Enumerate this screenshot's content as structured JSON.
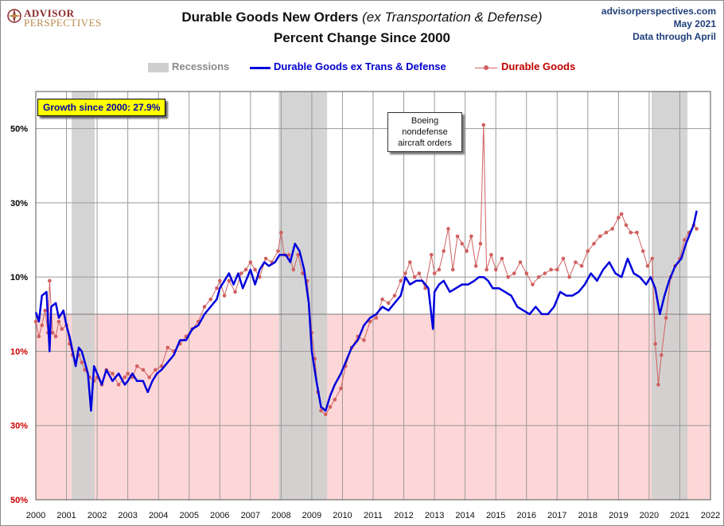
{
  "header": {
    "title_main": "Durable Goods New Orders",
    "title_italic": "(ex Transportation & Defense)",
    "subtitle": "Percent Change Since 2000",
    "logo_line1": "ADVISOR",
    "logo_line2": "PERSPECTIVES",
    "source_site": "advisorperspectives.com",
    "source_date": "May 2021",
    "source_data": "Data through April"
  },
  "legend": {
    "recessions": "Recessions",
    "series_blue": "Durable Goods ex Trans & Defense",
    "series_red": "Durable Goods"
  },
  "annotations": {
    "growth": "Growth since 2000:  27.9%",
    "boeing": [
      "Boeing",
      "nondefense",
      "aircraft orders"
    ]
  },
  "colors": {
    "blue_series": "#0000dd",
    "red_series": "#d06060",
    "recession": "#cfcfcf",
    "negative_zone": "#fdd7d7",
    "grid": "#9a9a9a",
    "positive_tick": "#000000",
    "negative_tick": "#cc0000"
  },
  "chart_data": {
    "type": "line",
    "x_unit": "year",
    "xlim": [
      2000,
      2022
    ],
    "ylim": [
      -50,
      60
    ],
    "x_ticks": [
      "2000",
      "2001",
      "2002",
      "2003",
      "2004",
      "2005",
      "2006",
      "2007",
      "2008",
      "2009",
      "2010",
      "2011",
      "2012",
      "2013",
      "2014",
      "2015",
      "2016",
      "2017",
      "2018",
      "2019",
      "2020",
      "2021",
      "2022"
    ],
    "y_ticks": [
      {
        "value": 50,
        "label": "50%",
        "negative": false
      },
      {
        "value": 30,
        "label": "30%",
        "negative": false
      },
      {
        "value": 10,
        "label": "10%",
        "negative": false
      },
      {
        "value": -10,
        "label": "10%",
        "negative": true
      },
      {
        "value": -30,
        "label": "30%",
        "negative": true
      },
      {
        "value": -50,
        "label": "50%",
        "negative": true
      }
    ],
    "negative_shading": true,
    "grid": true,
    "legend_position": "top-center",
    "recessions": [
      {
        "start": 2001.17,
        "end": 2001.92
      },
      {
        "start": 2007.92,
        "end": 2009.5
      },
      {
        "start": 2020.08,
        "end": 2021.25
      }
    ],
    "series": [
      {
        "name": "Durable Goods ex Trans & Defense",
        "points": [
          [
            2000.0,
            0.5
          ],
          [
            2000.1,
            -2
          ],
          [
            2000.2,
            5
          ],
          [
            2000.35,
            6
          ],
          [
            2000.45,
            -10
          ],
          [
            2000.5,
            2
          ],
          [
            2000.65,
            3
          ],
          [
            2000.75,
            -1
          ],
          [
            2000.9,
            1
          ],
          [
            2001.0,
            -3
          ],
          [
            2001.1,
            -6
          ],
          [
            2001.2,
            -10
          ],
          [
            2001.3,
            -14
          ],
          [
            2001.4,
            -9
          ],
          [
            2001.5,
            -10
          ],
          [
            2001.6,
            -13
          ],
          [
            2001.7,
            -16
          ],
          [
            2001.8,
            -26
          ],
          [
            2001.9,
            -14
          ],
          [
            2002.0,
            -16
          ],
          [
            2002.15,
            -19
          ],
          [
            2002.3,
            -15
          ],
          [
            2002.5,
            -18
          ],
          [
            2002.7,
            -16
          ],
          [
            2002.9,
            -19
          ],
          [
            2003.0,
            -18
          ],
          [
            2003.15,
            -16
          ],
          [
            2003.3,
            -18
          ],
          [
            2003.5,
            -18
          ],
          [
            2003.65,
            -21
          ],
          [
            2003.8,
            -18
          ],
          [
            2003.95,
            -16
          ],
          [
            2004.1,
            -15
          ],
          [
            2004.3,
            -13
          ],
          [
            2004.5,
            -11
          ],
          [
            2004.7,
            -7
          ],
          [
            2004.9,
            -7
          ],
          [
            2005.1,
            -4
          ],
          [
            2005.3,
            -3
          ],
          [
            2005.5,
            0
          ],
          [
            2005.7,
            2
          ],
          [
            2005.9,
            4
          ],
          [
            2006.0,
            7
          ],
          [
            2006.15,
            9
          ],
          [
            2006.3,
            11
          ],
          [
            2006.45,
            8
          ],
          [
            2006.6,
            11
          ],
          [
            2006.75,
            7
          ],
          [
            2006.9,
            10
          ],
          [
            2007.0,
            12
          ],
          [
            2007.15,
            8
          ],
          [
            2007.3,
            12
          ],
          [
            2007.45,
            14
          ],
          [
            2007.6,
            13
          ],
          [
            2007.8,
            14
          ],
          [
            2007.95,
            16
          ],
          [
            2008.15,
            16
          ],
          [
            2008.3,
            14
          ],
          [
            2008.45,
            19
          ],
          [
            2008.6,
            17
          ],
          [
            2008.75,
            12
          ],
          [
            2008.9,
            3
          ],
          [
            2009.0,
            -10
          ],
          [
            2009.15,
            -18
          ],
          [
            2009.3,
            -25
          ],
          [
            2009.45,
            -26
          ],
          [
            2009.6,
            -22
          ],
          [
            2009.75,
            -19
          ],
          [
            2009.95,
            -16
          ],
          [
            2010.15,
            -12
          ],
          [
            2010.3,
            -9
          ],
          [
            2010.5,
            -7
          ],
          [
            2010.7,
            -3
          ],
          [
            2010.9,
            -1
          ],
          [
            2011.1,
            0
          ],
          [
            2011.3,
            2
          ],
          [
            2011.5,
            1
          ],
          [
            2011.7,
            3
          ],
          [
            2011.9,
            5
          ],
          [
            2012.05,
            10
          ],
          [
            2012.2,
            8
          ],
          [
            2012.4,
            9
          ],
          [
            2012.6,
            9
          ],
          [
            2012.8,
            7
          ],
          [
            2012.95,
            -4
          ],
          [
            2013.0,
            6
          ],
          [
            2013.15,
            8
          ],
          [
            2013.3,
            9
          ],
          [
            2013.5,
            6
          ],
          [
            2013.7,
            7
          ],
          [
            2013.9,
            8
          ],
          [
            2014.1,
            8
          ],
          [
            2014.3,
            9
          ],
          [
            2014.45,
            10
          ],
          [
            2014.6,
            10
          ],
          [
            2014.75,
            9
          ],
          [
            2014.9,
            7
          ],
          [
            2015.1,
            7
          ],
          [
            2015.3,
            6
          ],
          [
            2015.5,
            5
          ],
          [
            2015.7,
            2
          ],
          [
            2015.9,
            1
          ],
          [
            2016.1,
            0
          ],
          [
            2016.3,
            2
          ],
          [
            2016.5,
            0
          ],
          [
            2016.7,
            0
          ],
          [
            2016.9,
            2
          ],
          [
            2017.1,
            6
          ],
          [
            2017.3,
            5
          ],
          [
            2017.5,
            5
          ],
          [
            2017.7,
            6
          ],
          [
            2017.9,
            8
          ],
          [
            2018.1,
            11
          ],
          [
            2018.3,
            9
          ],
          [
            2018.5,
            12
          ],
          [
            2018.7,
            14
          ],
          [
            2018.9,
            11
          ],
          [
            2019.1,
            10
          ],
          [
            2019.3,
            15
          ],
          [
            2019.5,
            11
          ],
          [
            2019.7,
            10
          ],
          [
            2019.9,
            8
          ],
          [
            2020.05,
            10
          ],
          [
            2020.2,
            7
          ],
          [
            2020.35,
            0
          ],
          [
            2020.5,
            5
          ],
          [
            2020.65,
            9
          ],
          [
            2020.85,
            13
          ],
          [
            2021.05,
            15
          ],
          [
            2021.2,
            19
          ],
          [
            2021.35,
            22
          ],
          [
            2021.45,
            24
          ],
          [
            2021.55,
            27.9
          ]
        ]
      },
      {
        "name": "Durable Goods",
        "points": [
          [
            2000.0,
            -2
          ],
          [
            2000.1,
            -6
          ],
          [
            2000.2,
            -3
          ],
          [
            2000.3,
            1
          ],
          [
            2000.4,
            -5
          ],
          [
            2000.45,
            9
          ],
          [
            2000.55,
            -5
          ],
          [
            2000.65,
            -6
          ],
          [
            2000.75,
            -2
          ],
          [
            2000.85,
            -4
          ],
          [
            2001.0,
            -3
          ],
          [
            2001.1,
            -8
          ],
          [
            2001.2,
            -11
          ],
          [
            2001.3,
            -13
          ],
          [
            2001.4,
            -11
          ],
          [
            2001.5,
            -13
          ],
          [
            2001.6,
            -15
          ],
          [
            2001.75,
            -17
          ],
          [
            2001.9,
            -18
          ],
          [
            2002.0,
            -17
          ],
          [
            2002.15,
            -19
          ],
          [
            2002.3,
            -15
          ],
          [
            2002.5,
            -16
          ],
          [
            2002.7,
            -19
          ],
          [
            2002.9,
            -17
          ],
          [
            2003.0,
            -16
          ],
          [
            2003.15,
            -17
          ],
          [
            2003.3,
            -14
          ],
          [
            2003.5,
            -15
          ],
          [
            2003.7,
            -17
          ],
          [
            2003.9,
            -15
          ],
          [
            2004.1,
            -14
          ],
          [
            2004.3,
            -9
          ],
          [
            2004.5,
            -10
          ],
          [
            2004.7,
            -8
          ],
          [
            2004.9,
            -6
          ],
          [
            2005.1,
            -4
          ],
          [
            2005.3,
            -2
          ],
          [
            2005.5,
            2
          ],
          [
            2005.7,
            4
          ],
          [
            2005.9,
            7
          ],
          [
            2006.0,
            9
          ],
          [
            2006.15,
            5
          ],
          [
            2006.3,
            9
          ],
          [
            2006.5,
            6
          ],
          [
            2006.7,
            11
          ],
          [
            2006.85,
            12
          ],
          [
            2007.0,
            14
          ],
          [
            2007.15,
            12
          ],
          [
            2007.3,
            10
          ],
          [
            2007.5,
            15
          ],
          [
            2007.7,
            14
          ],
          [
            2007.9,
            17
          ],
          [
            2008.0,
            22
          ],
          [
            2008.1,
            16
          ],
          [
            2008.25,
            16
          ],
          [
            2008.4,
            12
          ],
          [
            2008.55,
            16
          ],
          [
            2008.7,
            11
          ],
          [
            2008.85,
            9
          ],
          [
            2009.0,
            -5
          ],
          [
            2009.1,
            -12
          ],
          [
            2009.2,
            -21
          ],
          [
            2009.3,
            -26
          ],
          [
            2009.45,
            -27
          ],
          [
            2009.6,
            -25
          ],
          [
            2009.75,
            -23
          ],
          [
            2009.95,
            -20
          ],
          [
            2010.1,
            -14
          ],
          [
            2010.3,
            -9
          ],
          [
            2010.5,
            -6
          ],
          [
            2010.7,
            -7
          ],
          [
            2010.9,
            -2
          ],
          [
            2011.1,
            -1
          ],
          [
            2011.3,
            4
          ],
          [
            2011.5,
            3
          ],
          [
            2011.7,
            5
          ],
          [
            2011.9,
            9
          ],
          [
            2012.05,
            11
          ],
          [
            2012.2,
            14
          ],
          [
            2012.35,
            10
          ],
          [
            2012.5,
            11
          ],
          [
            2012.7,
            7
          ],
          [
            2012.9,
            16
          ],
          [
            2013.0,
            11
          ],
          [
            2013.15,
            12
          ],
          [
            2013.3,
            17
          ],
          [
            2013.45,
            23
          ],
          [
            2013.6,
            12
          ],
          [
            2013.75,
            21
          ],
          [
            2013.9,
            19
          ],
          [
            2014.05,
            17
          ],
          [
            2014.2,
            21
          ],
          [
            2014.35,
            13
          ],
          [
            2014.5,
            19
          ],
          [
            2014.6,
            51
          ],
          [
            2014.7,
            12
          ],
          [
            2014.85,
            16
          ],
          [
            2015.0,
            12
          ],
          [
            2015.2,
            15
          ],
          [
            2015.4,
            10
          ],
          [
            2015.6,
            11
          ],
          [
            2015.8,
            14
          ],
          [
            2016.0,
            11
          ],
          [
            2016.2,
            8
          ],
          [
            2016.4,
            10
          ],
          [
            2016.6,
            11
          ],
          [
            2016.8,
            12
          ],
          [
            2017.0,
            12
          ],
          [
            2017.2,
            15
          ],
          [
            2017.4,
            10
          ],
          [
            2017.6,
            14
          ],
          [
            2017.8,
            13
          ],
          [
            2018.0,
            17
          ],
          [
            2018.2,
            19
          ],
          [
            2018.4,
            21
          ],
          [
            2018.6,
            22
          ],
          [
            2018.8,
            23
          ],
          [
            2019.0,
            26
          ],
          [
            2019.1,
            27
          ],
          [
            2019.25,
            24
          ],
          [
            2019.4,
            22
          ],
          [
            2019.6,
            22
          ],
          [
            2019.8,
            17
          ],
          [
            2019.95,
            13
          ],
          [
            2020.1,
            15
          ],
          [
            2020.2,
            -8
          ],
          [
            2020.3,
            -19
          ],
          [
            2020.4,
            -11
          ],
          [
            2020.55,
            -1
          ],
          [
            2020.7,
            10
          ],
          [
            2020.85,
            13
          ],
          [
            2021.0,
            15
          ],
          [
            2021.15,
            20
          ],
          [
            2021.3,
            22
          ],
          [
            2021.45,
            24
          ],
          [
            2021.55,
            23
          ]
        ]
      }
    ]
  }
}
